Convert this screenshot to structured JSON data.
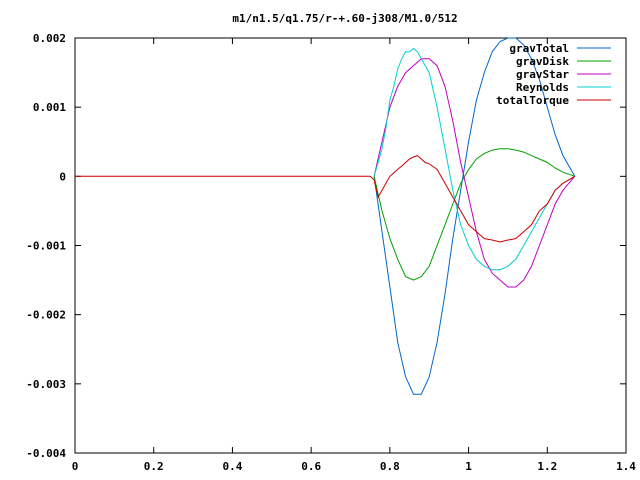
{
  "chart_data": {
    "type": "line",
    "title": "m1/n1.5/q1.75/r-+.60-j308/M1.0/512",
    "xlabel": "",
    "ylabel": "",
    "xlim": [
      0,
      1.4
    ],
    "ylim": [
      -0.004,
      0.002
    ],
    "x_ticks": [
      0,
      0.2,
      0.4,
      0.6,
      0.8,
      1,
      1.2,
      1.4
    ],
    "x_tick_labels": [
      "0",
      "0.2",
      "0.4",
      "0.6",
      "0.8",
      "1",
      "1.2",
      "1.4"
    ],
    "y_ticks": [
      -0.004,
      -0.003,
      -0.002,
      -0.001,
      0,
      0.001,
      0.002
    ],
    "y_tick_labels": [
      "-0.004",
      "-0.003",
      "-0.002",
      "-0.001",
      "0",
      "0.001",
      "0.002"
    ],
    "grid": false,
    "legend_position": "top-right",
    "series": [
      {
        "name": "gravTotal",
        "color": "#0066cc",
        "x": [
          0.76,
          0.78,
          0.8,
          0.82,
          0.84,
          0.86,
          0.88,
          0.9,
          0.92,
          0.94,
          0.96,
          0.98,
          1.0,
          1.02,
          1.04,
          1.06,
          1.08,
          1.1,
          1.12,
          1.14,
          1.16,
          1.18,
          1.2,
          1.22,
          1.24,
          1.27
        ],
        "y": [
          0.0,
          -0.0008,
          -0.0016,
          -0.0024,
          -0.0029,
          -0.00315,
          -0.00315,
          -0.0029,
          -0.0024,
          -0.0017,
          -0.0009,
          -0.0002,
          0.0005,
          0.0011,
          0.0015,
          0.0018,
          0.00195,
          0.002,
          0.002,
          0.0019,
          0.0017,
          0.0014,
          0.001,
          0.0006,
          0.0003,
          0.0
        ]
      },
      {
        "name": "gravDisk",
        "color": "#00a000",
        "x": [
          0.76,
          0.78,
          0.8,
          0.82,
          0.84,
          0.86,
          0.88,
          0.9,
          0.92,
          0.94,
          0.96,
          0.98,
          1.0,
          1.02,
          1.04,
          1.06,
          1.08,
          1.1,
          1.12,
          1.14,
          1.16,
          1.18,
          1.2,
          1.22,
          1.24,
          1.27
        ],
        "y": [
          0.0,
          -0.0005,
          -0.0009,
          -0.0012,
          -0.00145,
          -0.0015,
          -0.00145,
          -0.0013,
          -0.001,
          -0.0007,
          -0.0004,
          -0.0001,
          0.0001,
          0.00025,
          0.00033,
          0.00038,
          0.0004,
          0.0004,
          0.00038,
          0.00035,
          0.0003,
          0.00025,
          0.0002,
          0.00012,
          6e-05,
          0.0
        ]
      },
      {
        "name": "gravStar",
        "color": "#c000c0",
        "x": [
          0.76,
          0.78,
          0.8,
          0.82,
          0.84,
          0.86,
          0.88,
          0.9,
          0.92,
          0.94,
          0.96,
          0.98,
          1.0,
          1.02,
          1.04,
          1.06,
          1.08,
          1.1,
          1.12,
          1.14,
          1.16,
          1.18,
          1.2,
          1.22,
          1.24,
          1.27
        ],
        "y": [
          0.0,
          0.0005,
          0.001,
          0.0013,
          0.0015,
          0.0016,
          0.0017,
          0.0017,
          0.0016,
          0.0013,
          0.0008,
          0.0002,
          -0.0003,
          -0.0008,
          -0.0012,
          -0.0014,
          -0.0015,
          -0.0016,
          -0.0016,
          -0.0015,
          -0.0013,
          -0.001,
          -0.0007,
          -0.0004,
          -0.0002,
          0.0
        ]
      },
      {
        "name": "Reynolds",
        "color": "#00d0d0",
        "x": [
          0.76,
          0.77,
          0.78,
          0.79,
          0.8,
          0.81,
          0.82,
          0.83,
          0.84,
          0.85,
          0.86,
          0.87,
          0.88,
          0.9,
          0.92,
          0.94,
          0.96,
          0.98,
          1.0,
          1.02,
          1.04,
          1.06,
          1.08,
          1.1,
          1.12,
          1.14,
          1.16,
          1.18,
          1.2,
          1.22,
          1.24,
          1.27
        ],
        "y": [
          0.0,
          0.0002,
          0.0004,
          0.0007,
          0.0011,
          0.0013,
          0.00155,
          0.0017,
          0.0018,
          0.0018,
          0.00185,
          0.0018,
          0.0017,
          0.0015,
          0.001,
          0.0004,
          -0.0002,
          -0.0007,
          -0.001,
          -0.0012,
          -0.0013,
          -0.00135,
          -0.00135,
          -0.0013,
          -0.0012,
          -0.001,
          -0.0008,
          -0.0006,
          -0.0004,
          -0.0002,
          -0.0001,
          0.0
        ]
      },
      {
        "name": "totalTorque",
        "color": "#cc0000",
        "x": [
          0.0,
          0.75,
          0.76,
          0.77,
          0.78,
          0.79,
          0.8,
          0.81,
          0.82,
          0.83,
          0.84,
          0.85,
          0.86,
          0.87,
          0.88,
          0.89,
          0.9,
          0.92,
          0.94,
          0.96,
          0.98,
          1.0,
          1.02,
          1.04,
          1.06,
          1.08,
          1.1,
          1.12,
          1.14,
          1.16,
          1.18,
          1.2,
          1.22,
          1.24,
          1.27
        ],
        "y": [
          0.0,
          0.0,
          -5e-05,
          -0.0003,
          -0.0002,
          -0.0001,
          0.0,
          5e-05,
          0.0001,
          0.00015,
          0.0002,
          0.00025,
          0.00028,
          0.0003,
          0.00025,
          0.0002,
          0.00018,
          0.0001,
          -0.0001,
          -0.0003,
          -0.0005,
          -0.0007,
          -0.0008,
          -0.0009,
          -0.00092,
          -0.00095,
          -0.00092,
          -0.0009,
          -0.0008,
          -0.0007,
          -0.0005,
          -0.0004,
          -0.0002,
          -0.0001,
          0.0
        ]
      }
    ]
  }
}
